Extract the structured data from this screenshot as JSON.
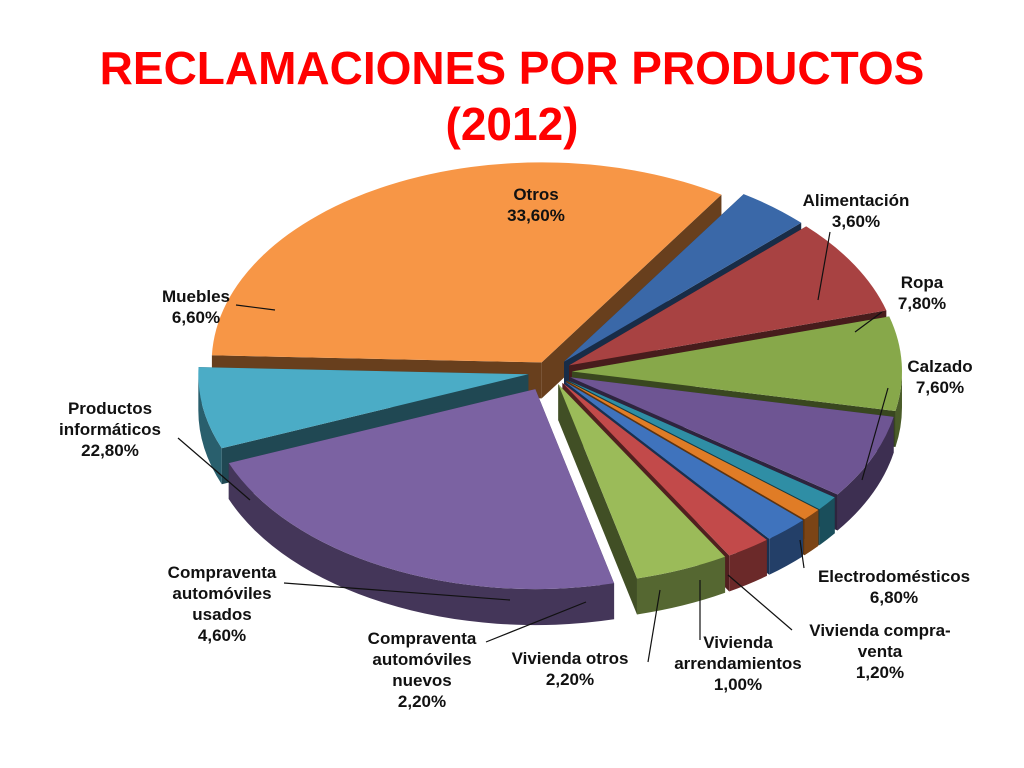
{
  "chart_data": {
    "type": "pie",
    "title": "RECLAMACIONES POR PRODUCTOS",
    "subtitle": "(2012)",
    "slices": [
      {
        "label": [
          "Alimentación"
        ],
        "value_label": "3,60%",
        "value": 3.6,
        "color": "#3a68a8"
      },
      {
        "label": [
          "Ropa"
        ],
        "value_label": "7,80%",
        "value": 7.8,
        "color": "#a84242"
      },
      {
        "label": [
          "Calzado"
        ],
        "value_label": "7,60%",
        "value": 7.6,
        "color": "#87a84a"
      },
      {
        "label": [
          "Electrodomésticos"
        ],
        "value_label": "6,80%",
        "value": 6.8,
        "color": "#6e5593"
      },
      {
        "label": [
          "Vivienda compra-",
          "venta"
        ],
        "value_label": "1,20%",
        "value": 1.2,
        "color": "#2f8ea5"
      },
      {
        "label": [
          "Vivienda",
          "arrendamientos"
        ],
        "value_label": "1,00%",
        "value": 1.0,
        "color": "#e07c26"
      },
      {
        "label": [
          "Vivienda otros"
        ],
        "value_label": "2,20%",
        "value": 2.2,
        "color": "#3f73bd"
      },
      {
        "label": [
          "Compraventa",
          "automóviles",
          "nuevos"
        ],
        "value_label": "2,20%",
        "value": 2.2,
        "color": "#c24a4a"
      },
      {
        "label": [
          "Compraventa",
          "automóviles",
          "usados"
        ],
        "value_label": "4,60%",
        "value": 4.6,
        "color": "#9bbb59"
      },
      {
        "label": [
          "Productos",
          "informáticos"
        ],
        "value_label": "22,80%",
        "value": 22.8,
        "color": "#7b62a2"
      },
      {
        "label": [
          "Muebles"
        ],
        "value_label": "6,60%",
        "value": 6.6,
        "color": "#4bacc6"
      },
      {
        "label": [
          "Otros"
        ],
        "value_label": "33,60%",
        "value": 33.6,
        "color": "#f79646"
      }
    ]
  }
}
